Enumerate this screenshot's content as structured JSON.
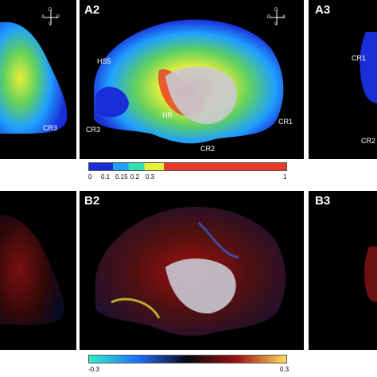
{
  "panels": {
    "A1": {
      "compass": {
        "top": "D",
        "left": "A",
        "right": "P",
        "bottom": "V"
      },
      "regions": [
        "CR3"
      ]
    },
    "A2": {
      "label": "A2",
      "compass": {
        "top": "D",
        "left": "P",
        "right": "A",
        "bottom": "V"
      },
      "regions": [
        "HS5",
        "HR",
        "CR3",
        "CR1",
        "CR2"
      ]
    },
    "A3": {
      "label": "A3",
      "regions": [
        "CR1",
        "CR2"
      ]
    },
    "B2": {
      "label": "B2"
    },
    "B3": {
      "label": "B3"
    }
  },
  "colorbar_a": {
    "ticks": [
      "0",
      "0.1",
      "0.15",
      "0.2",
      "0.3",
      "1"
    ],
    "colors": [
      "#1a2ed8",
      "#1fa0ff",
      "#2fe0b0",
      "#e8ef3a",
      "#e83a2a"
    ]
  },
  "colorbar_b": {
    "ticks": [
      "-0.3",
      "0.3"
    ],
    "colors": [
      "#2ff0c8",
      "#1f6fff",
      "#060610",
      "#a01010",
      "#ffe060"
    ]
  }
}
